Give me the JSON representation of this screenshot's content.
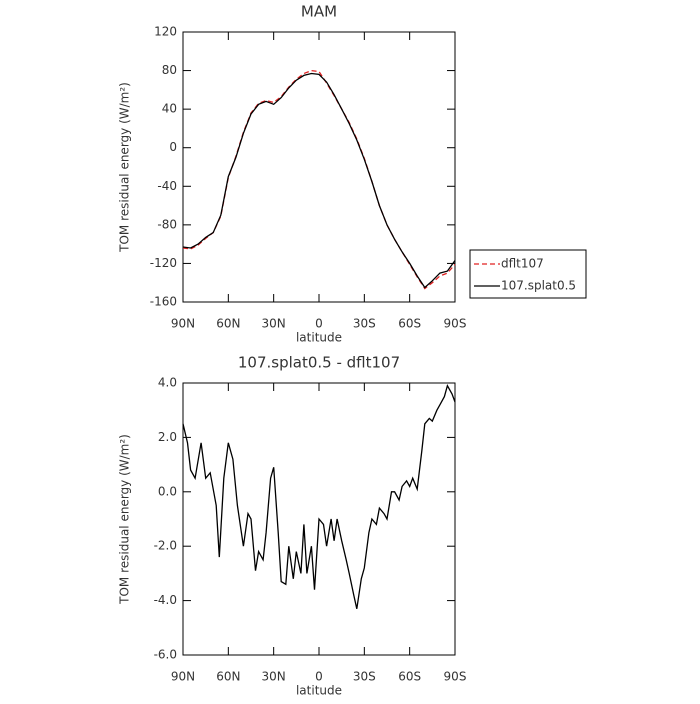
{
  "chart_data": [
    {
      "type": "line",
      "title": "MAM",
      "xlabel": "latitude",
      "ylabel": "TOM residual energy (W/m²)",
      "x": [
        90,
        85,
        80,
        75,
        70,
        65,
        60,
        55,
        50,
        45,
        40,
        35,
        30,
        25,
        20,
        15,
        10,
        5,
        0,
        -5,
        -10,
        -15,
        -20,
        -25,
        -30,
        -35,
        -40,
        -45,
        -50,
        -55,
        -60,
        -65,
        -70,
        -75,
        -80,
        -85,
        -90
      ],
      "series": [
        {
          "name": "dflt107",
          "color": "#e02020",
          "linestyle": "dashed",
          "values": [
            -104,
            -105,
            -101,
            -94,
            -88,
            -71,
            -31,
            -9,
            16,
            36,
            46,
            49,
            47,
            53,
            63,
            71,
            77,
            80,
            79,
            67,
            54,
            40,
            26,
            9,
            -11,
            -35,
            -60,
            -80,
            -95,
            -108,
            -121,
            -134,
            -146,
            -140,
            -133,
            -130,
            -121
          ]
        },
        {
          "name": "107.splat0.5",
          "color": "#000000",
          "linestyle": "solid",
          "values": [
            -103,
            -104,
            -100,
            -93,
            -88,
            -70,
            -30,
            -10,
            15,
            35,
            45,
            48,
            45,
            52,
            62,
            70,
            75,
            77,
            76,
            68,
            55,
            40,
            25,
            8,
            -12,
            -35,
            -60,
            -80,
            -95,
            -108,
            -120,
            -133,
            -145,
            -138,
            -130,
            -128,
            -117
          ]
        }
      ],
      "xlim": [
        90,
        -90
      ],
      "xticks": [
        {
          "value": 90,
          "label": "90N"
        },
        {
          "value": 60,
          "label": "60N"
        },
        {
          "value": 30,
          "label": "30N"
        },
        0,
        {
          "value": -30,
          "label": "30S"
        },
        {
          "value": -60,
          "label": "60S"
        },
        {
          "value": -90,
          "label": "90S"
        }
      ],
      "ylim": [
        -160,
        120
      ],
      "yticks": [
        -160,
        -120,
        -80,
        -40,
        0,
        40,
        80,
        120
      ],
      "legend": "right"
    },
    {
      "type": "line",
      "title": "107.splat0.5 - dflt107",
      "xlabel": "latitude",
      "ylabel": "TOM residual energy (W/m²)",
      "x": [
        90,
        87,
        85,
        82,
        78,
        75,
        72,
        68,
        66,
        63,
        60,
        57,
        54,
        50,
        47,
        45,
        42,
        40,
        37,
        35,
        32,
        30,
        27,
        25,
        22,
        20,
        17,
        15,
        12,
        10,
        8,
        5,
        3,
        0,
        -3,
        -5,
        -8,
        -10,
        -12,
        -15,
        -18,
        -20,
        -23,
        -25,
        -28,
        -30,
        -33,
        -35,
        -38,
        -40,
        -43,
        -45,
        -48,
        -50,
        -53,
        -55,
        -58,
        -60,
        -62,
        -65,
        -68,
        -70,
        -73,
        -75,
        -78,
        -80,
        -83,
        -85,
        -88,
        -90
      ],
      "series": [
        {
          "color": "#000000",
          "linestyle": "solid",
          "values": [
            2.5,
            1.8,
            0.8,
            0.5,
            1.8,
            0.5,
            0.7,
            -0.5,
            -2.4,
            0.5,
            1.8,
            1.2,
            -0.5,
            -2.0,
            -0.8,
            -1.0,
            -2.9,
            -2.2,
            -2.5,
            -1.5,
            0.5,
            0.9,
            -1.5,
            -3.3,
            -3.4,
            -2.0,
            -3.2,
            -2.2,
            -3.0,
            -1.2,
            -3.0,
            -2.0,
            -3.6,
            -1.0,
            -1.2,
            -2.0,
            -1.0,
            -1.8,
            -1.0,
            -1.8,
            -2.5,
            -3.0,
            -3.8,
            -4.3,
            -3.2,
            -2.8,
            -1.5,
            -1.0,
            -1.2,
            -0.6,
            -0.8,
            -1.0,
            0.0,
            0.0,
            -0.3,
            0.2,
            0.4,
            0.2,
            0.5,
            0.1,
            1.5,
            2.5,
            2.7,
            2.6,
            3.0,
            3.2,
            3.5,
            3.9,
            3.6,
            3.3
          ]
        }
      ],
      "xlim": [
        90,
        -90
      ],
      "xticks": [
        {
          "value": 90,
          "label": "90N"
        },
        {
          "value": 60,
          "label": "60N"
        },
        {
          "value": 30,
          "label": "30N"
        },
        0,
        {
          "value": -30,
          "label": "30S"
        },
        {
          "value": -60,
          "label": "60S"
        },
        {
          "value": -90,
          "label": "90S"
        }
      ],
      "ylim": [
        -6,
        4
      ],
      "yticks": [
        {
          "value": -6,
          "label": "-6.0"
        },
        {
          "value": -4,
          "label": "-4.0"
        },
        {
          "value": -2,
          "label": "-2.0"
        },
        {
          "value": 0,
          "label": "0.0"
        },
        {
          "value": 2,
          "label": "2.0"
        },
        {
          "value": 4,
          "label": "4.0"
        }
      ]
    }
  ]
}
